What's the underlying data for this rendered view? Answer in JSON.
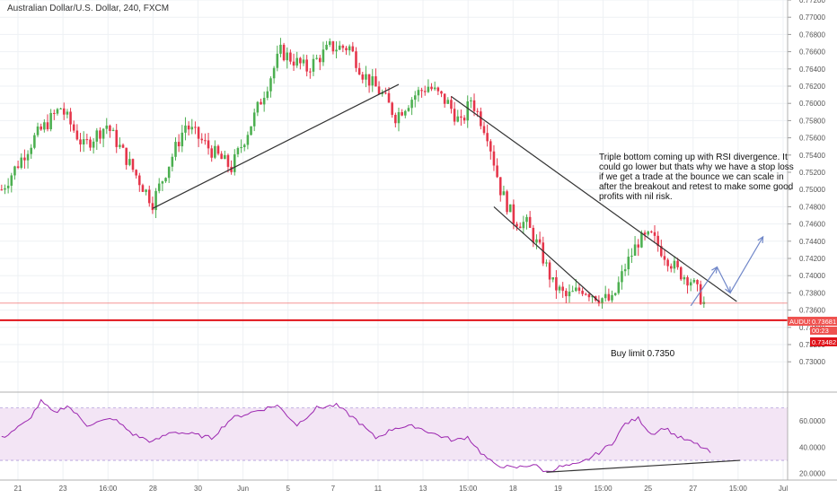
{
  "title": "Australian Dollar/U.S. Dollar, 240, FXCM",
  "colors": {
    "bull": "#4caf50",
    "bear": "#e5354a",
    "support": "#e0131a",
    "trendline": "#333333",
    "arrow": "#6f86c8",
    "rsi_line": "#9c27b0",
    "rsi_band": "#f3e5f5",
    "price_label": "#ef5350"
  },
  "annotation": "Triple bottom coming up with RSI divergence. It could go lower but thats why we have a stop loss if we get a trade at the bounce we can scale in after the breakout and retest to make some good profits with nil risk.",
  "annotation_lines": [
    "Triple bottom coming up with RSI divergence. It",
    "could go lower but thats why we have a stop loss",
    "if we get a trade at the bounce we can scale in",
    "after the breakout and retest to make some good",
    "profits with nil risk."
  ],
  "buy_limit_label": "Buy limit 0.7350",
  "price_labels": {
    "symbol": "AUDUSD",
    "current": "0.73681",
    "countdown": "00:23",
    "support": "0.73482"
  },
  "chart_data": [
    {
      "type": "candlestick",
      "title": "Australian Dollar/U.S. Dollar, 240, FXCM",
      "ylim": [
        0.727,
        0.772
      ],
      "y_ticks": [
        "0.77200",
        "0.77000",
        "0.76800",
        "0.76600",
        "0.76400",
        "0.76200",
        "0.76000",
        "0.75800",
        "0.75600",
        "0.75400",
        "0.75200",
        "0.75000",
        "0.74800",
        "0.74600",
        "0.74400",
        "0.74200",
        "0.74000",
        "0.73800",
        "0.73600",
        "0.73400",
        "0.73200",
        "0.73000"
      ],
      "x_ticks": [
        "21",
        "23",
        "16:00",
        "28",
        "30",
        "Jun",
        "5",
        "7",
        "11",
        "13",
        "15:00",
        "18",
        "19",
        "15:00",
        "25",
        "27",
        "15:00",
        "Jul"
      ],
      "waypoints": [
        [
          0,
          0.75
        ],
        [
          10,
          0.756
        ],
        [
          18,
          0.7595
        ],
        [
          25,
          0.755
        ],
        [
          32,
          0.7575
        ],
        [
          42,
          0.751
        ],
        [
          46,
          0.7485
        ],
        [
          56,
          0.7575
        ],
        [
          64,
          0.7545
        ],
        [
          70,
          0.7525
        ],
        [
          77,
          0.7585
        ],
        [
          85,
          0.766
        ],
        [
          93,
          0.764
        ],
        [
          100,
          0.7665
        ],
        [
          106,
          0.7665
        ],
        [
          110,
          0.7635
        ],
        [
          116,
          0.761
        ],
        [
          120,
          0.7585
        ],
        [
          126,
          0.761
        ],
        [
          130,
          0.762
        ],
        [
          136,
          0.76
        ],
        [
          140,
          0.7575
        ],
        [
          143,
          0.7605
        ],
        [
          148,
          0.7565
        ],
        [
          152,
          0.75
        ],
        [
          156,
          0.7465
        ],
        [
          160,
          0.746
        ],
        [
          164,
          0.743
        ],
        [
          168,
          0.739
        ],
        [
          172,
          0.7375
        ],
        [
          177,
          0.7385
        ],
        [
          182,
          0.7375
        ],
        [
          186,
          0.737
        ],
        [
          190,
          0.741
        ],
        [
          194,
          0.744
        ],
        [
          198,
          0.7445
        ],
        [
          202,
          0.7425
        ],
        [
          206,
          0.7405
        ],
        [
          210,
          0.7395
        ],
        [
          214,
          0.7368
        ]
      ],
      "support_level": 0.73482,
      "current_price": 0.73681,
      "trendlines": [
        {
          "from": [
            46,
            0.7478
          ],
          "to": [
            121,
            0.7622
          ]
        },
        {
          "from": [
            137,
            0.7608
          ],
          "to": [
            224,
            0.737
          ]
        },
        {
          "from": [
            150,
            0.748
          ],
          "to": [
            182,
            0.737
          ]
        }
      ],
      "projection_arrows": [
        {
          "from": [
            210,
            0.7365
          ],
          "to": [
            218,
            0.741
          ]
        },
        {
          "from": [
            218,
            0.741
          ],
          "to": [
            222,
            0.738
          ]
        },
        {
          "from": [
            222,
            0.738
          ],
          "to": [
            232,
            0.7445
          ]
        }
      ]
    },
    {
      "type": "line",
      "name": "RSI",
      "ylim": [
        15,
        80
      ],
      "y_ticks": [
        "60.0000",
        "40.0000",
        "20.0000"
      ],
      "band": [
        30,
        70
      ],
      "waypoints": [
        [
          0,
          47
        ],
        [
          8,
          60
        ],
        [
          12,
          75
        ],
        [
          16,
          66
        ],
        [
          20,
          72
        ],
        [
          26,
          57
        ],
        [
          34,
          62
        ],
        [
          40,
          50
        ],
        [
          46,
          44
        ],
        [
          52,
          52
        ],
        [
          58,
          50
        ],
        [
          64,
          47
        ],
        [
          70,
          62
        ],
        [
          78,
          68
        ],
        [
          84,
          72
        ],
        [
          90,
          57
        ],
        [
          96,
          70
        ],
        [
          102,
          72
        ],
        [
          108,
          61
        ],
        [
          114,
          47
        ],
        [
          120,
          55
        ],
        [
          126,
          56
        ],
        [
          132,
          50
        ],
        [
          138,
          45
        ],
        [
          142,
          48
        ],
        [
          146,
          36
        ],
        [
          150,
          27
        ],
        [
          156,
          24
        ],
        [
          162,
          27
        ],
        [
          166,
          21
        ],
        [
          170,
          25
        ],
        [
          176,
          27
        ],
        [
          182,
          36
        ],
        [
          186,
          43
        ],
        [
          190,
          58
        ],
        [
          194,
          62
        ],
        [
          198,
          50
        ],
        [
          202,
          55
        ],
        [
          206,
          48
        ],
        [
          212,
          42
        ],
        [
          216,
          36
        ]
      ],
      "divergence_line": {
        "from": [
          166,
          21
        ],
        "to": [
          225,
          30
        ]
      }
    }
  ]
}
